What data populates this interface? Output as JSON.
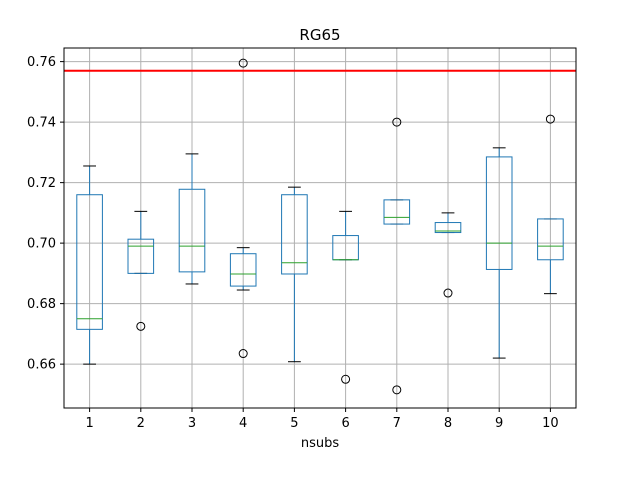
{
  "chart_data": {
    "type": "boxplot",
    "title": "RG65",
    "xlabel": "nsubs",
    "ylabel": "",
    "ylim": [
      0.6455,
      0.7645
    ],
    "yticks": [
      "0.66",
      "0.68",
      "0.70",
      "0.72",
      "0.74",
      "0.76"
    ],
    "ytick_values": [
      0.66,
      0.68,
      0.7,
      0.72,
      0.74,
      0.76
    ],
    "categories": [
      "1",
      "2",
      "3",
      "4",
      "5",
      "6",
      "7",
      "8",
      "9",
      "10"
    ],
    "grid": true,
    "reference_line": {
      "y": 0.757,
      "color": "#ff0000"
    },
    "box_color": "#1f77b4",
    "median_color": "#2ca02c",
    "boxes": [
      {
        "label": "1",
        "whisker_low": 0.66,
        "q1": 0.6715,
        "median": 0.675,
        "q3": 0.716,
        "whisker_high": 0.7255,
        "outliers": []
      },
      {
        "label": "2",
        "whisker_low": 0.69,
        "q1": 0.69,
        "median": 0.699,
        "q3": 0.7013,
        "whisker_high": 0.7105,
        "outliers": [
          0.6725
        ]
      },
      {
        "label": "3",
        "whisker_low": 0.6865,
        "q1": 0.6905,
        "median": 0.699,
        "q3": 0.7178,
        "whisker_high": 0.7295,
        "outliers": []
      },
      {
        "label": "4",
        "whisker_low": 0.6845,
        "q1": 0.6858,
        "median": 0.6898,
        "q3": 0.6965,
        "whisker_high": 0.6985,
        "outliers": [
          0.7595,
          0.6635
        ]
      },
      {
        "label": "5",
        "whisker_low": 0.6608,
        "q1": 0.6898,
        "median": 0.6935,
        "q3": 0.716,
        "whisker_high": 0.7185,
        "outliers": []
      },
      {
        "label": "6",
        "whisker_low": 0.6945,
        "q1": 0.6945,
        "median": 0.6945,
        "q3": 0.7025,
        "whisker_high": 0.7105,
        "outliers": [
          0.655
        ]
      },
      {
        "label": "7",
        "whisker_low": 0.7063,
        "q1": 0.7063,
        "median": 0.7085,
        "q3": 0.7143,
        "whisker_high": 0.7143,
        "outliers": [
          0.74,
          0.6515
        ]
      },
      {
        "label": "8",
        "whisker_low": 0.7035,
        "q1": 0.7035,
        "median": 0.704,
        "q3": 0.7068,
        "whisker_high": 0.71,
        "outliers": [
          0.6835
        ]
      },
      {
        "label": "9",
        "whisker_low": 0.662,
        "q1": 0.6913,
        "median": 0.7,
        "q3": 0.7285,
        "whisker_high": 0.7315,
        "outliers": []
      },
      {
        "label": "10",
        "whisker_low": 0.6833,
        "q1": 0.6945,
        "median": 0.699,
        "q3": 0.708,
        "whisker_high": 0.708,
        "outliers": [
          0.741
        ]
      }
    ]
  }
}
